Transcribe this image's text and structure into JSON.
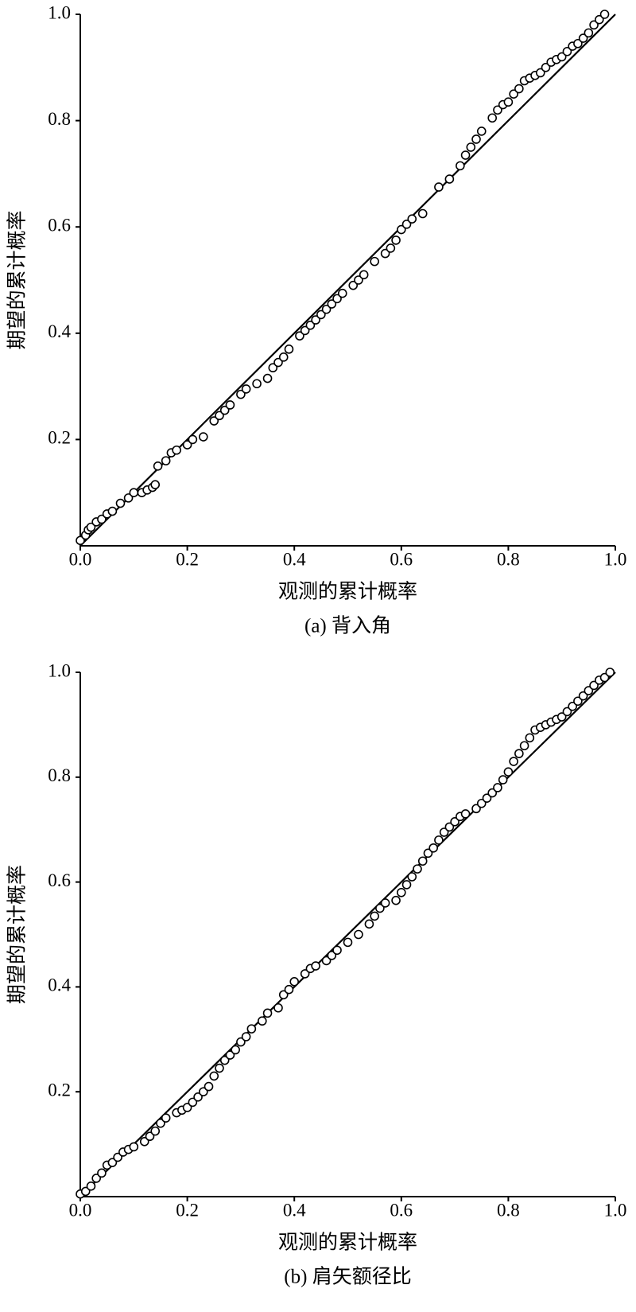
{
  "chart_data": [
    {
      "type": "scatter",
      "caption": "(a) 背入角",
      "x_label": "观测的累计概率",
      "y_label": "期望的累计概率",
      "xlim": [
        0,
        1
      ],
      "ylim": [
        0,
        1
      ],
      "xticks": [
        {
          "value": 0,
          "label": "0.0"
        },
        0.2,
        0.4,
        0.6,
        0.8,
        {
          "value": 1,
          "label": "1.0"
        }
      ],
      "yticks": [
        0.2,
        0.4,
        0.6,
        0.8,
        {
          "value": 1,
          "label": "1.0"
        }
      ],
      "grid": false,
      "reference_line": {
        "x": [
          0,
          1
        ],
        "y": [
          0,
          1
        ]
      },
      "x": [
        0.0,
        0.01,
        0.015,
        0.02,
        0.03,
        0.04,
        0.05,
        0.06,
        0.075,
        0.09,
        0.1,
        0.115,
        0.125,
        0.135,
        0.14,
        0.145,
        0.16,
        0.17,
        0.18,
        0.2,
        0.21,
        0.23,
        0.25,
        0.26,
        0.27,
        0.28,
        0.3,
        0.31,
        0.33,
        0.35,
        0.36,
        0.37,
        0.38,
        0.39,
        0.41,
        0.42,
        0.43,
        0.44,
        0.45,
        0.46,
        0.47,
        0.48,
        0.49,
        0.51,
        0.52,
        0.53,
        0.55,
        0.57,
        0.58,
        0.59,
        0.6,
        0.61,
        0.62,
        0.64,
        0.67,
        0.69,
        0.71,
        0.72,
        0.73,
        0.74,
        0.75,
        0.77,
        0.78,
        0.79,
        0.8,
        0.81,
        0.82,
        0.83,
        0.84,
        0.85,
        0.86,
        0.87,
        0.88,
        0.89,
        0.9,
        0.91,
        0.92,
        0.93,
        0.94,
        0.95,
        0.96,
        0.97,
        0.98
      ],
      "y": [
        0.01,
        0.02,
        0.03,
        0.035,
        0.045,
        0.05,
        0.06,
        0.065,
        0.08,
        0.09,
        0.1,
        0.1,
        0.105,
        0.11,
        0.115,
        0.15,
        0.16,
        0.175,
        0.18,
        0.19,
        0.2,
        0.205,
        0.235,
        0.245,
        0.255,
        0.265,
        0.285,
        0.295,
        0.305,
        0.315,
        0.335,
        0.345,
        0.355,
        0.37,
        0.395,
        0.405,
        0.415,
        0.425,
        0.435,
        0.445,
        0.455,
        0.465,
        0.475,
        0.49,
        0.5,
        0.51,
        0.535,
        0.55,
        0.56,
        0.575,
        0.595,
        0.605,
        0.615,
        0.625,
        0.675,
        0.69,
        0.715,
        0.735,
        0.75,
        0.765,
        0.78,
        0.805,
        0.82,
        0.83,
        0.835,
        0.85,
        0.86,
        0.875,
        0.88,
        0.885,
        0.89,
        0.9,
        0.91,
        0.915,
        0.92,
        0.93,
        0.94,
        0.945,
        0.955,
        0.965,
        0.98,
        0.99,
        1.0
      ]
    },
    {
      "type": "scatter",
      "caption": "(b) 肩矢额径比",
      "x_label": "观测的累计概率",
      "y_label": "期望的累计概率",
      "xlim": [
        0,
        1
      ],
      "ylim": [
        0,
        1
      ],
      "xticks": [
        {
          "value": 0,
          "label": "0.0"
        },
        0.2,
        0.4,
        0.6,
        0.8,
        {
          "value": 1,
          "label": "1.0"
        }
      ],
      "yticks": [
        0.2,
        0.4,
        0.6,
        0.8,
        {
          "value": 1,
          "label": "1.0"
        }
      ],
      "grid": false,
      "reference_line": {
        "x": [
          0,
          1
        ],
        "y": [
          0,
          1
        ]
      },
      "x": [
        0.0,
        0.01,
        0.02,
        0.03,
        0.04,
        0.05,
        0.06,
        0.07,
        0.08,
        0.09,
        0.1,
        0.12,
        0.13,
        0.14,
        0.15,
        0.16,
        0.18,
        0.19,
        0.2,
        0.21,
        0.22,
        0.23,
        0.24,
        0.25,
        0.26,
        0.27,
        0.28,
        0.29,
        0.3,
        0.31,
        0.32,
        0.34,
        0.35,
        0.37,
        0.38,
        0.39,
        0.4,
        0.42,
        0.43,
        0.44,
        0.46,
        0.47,
        0.48,
        0.5,
        0.52,
        0.54,
        0.55,
        0.56,
        0.57,
        0.59,
        0.6,
        0.61,
        0.62,
        0.63,
        0.64,
        0.65,
        0.66,
        0.67,
        0.68,
        0.69,
        0.7,
        0.71,
        0.72,
        0.74,
        0.75,
        0.76,
        0.77,
        0.78,
        0.79,
        0.8,
        0.81,
        0.82,
        0.83,
        0.84,
        0.85,
        0.86,
        0.87,
        0.88,
        0.89,
        0.9,
        0.91,
        0.92,
        0.93,
        0.94,
        0.95,
        0.96,
        0.97,
        0.98,
        0.99
      ],
      "y": [
        0.005,
        0.01,
        0.02,
        0.035,
        0.045,
        0.06,
        0.065,
        0.075,
        0.085,
        0.09,
        0.095,
        0.105,
        0.115,
        0.125,
        0.14,
        0.15,
        0.16,
        0.165,
        0.17,
        0.18,
        0.19,
        0.2,
        0.21,
        0.23,
        0.245,
        0.26,
        0.27,
        0.28,
        0.295,
        0.305,
        0.32,
        0.335,
        0.35,
        0.36,
        0.385,
        0.395,
        0.41,
        0.425,
        0.435,
        0.44,
        0.45,
        0.46,
        0.47,
        0.485,
        0.5,
        0.52,
        0.535,
        0.55,
        0.56,
        0.565,
        0.58,
        0.595,
        0.61,
        0.625,
        0.64,
        0.655,
        0.665,
        0.68,
        0.695,
        0.705,
        0.715,
        0.725,
        0.73,
        0.74,
        0.75,
        0.76,
        0.77,
        0.78,
        0.795,
        0.81,
        0.83,
        0.845,
        0.86,
        0.875,
        0.89,
        0.895,
        0.9,
        0.905,
        0.91,
        0.915,
        0.925,
        0.935,
        0.945,
        0.955,
        0.965,
        0.975,
        0.985,
        0.99,
        1.0
      ]
    }
  ]
}
